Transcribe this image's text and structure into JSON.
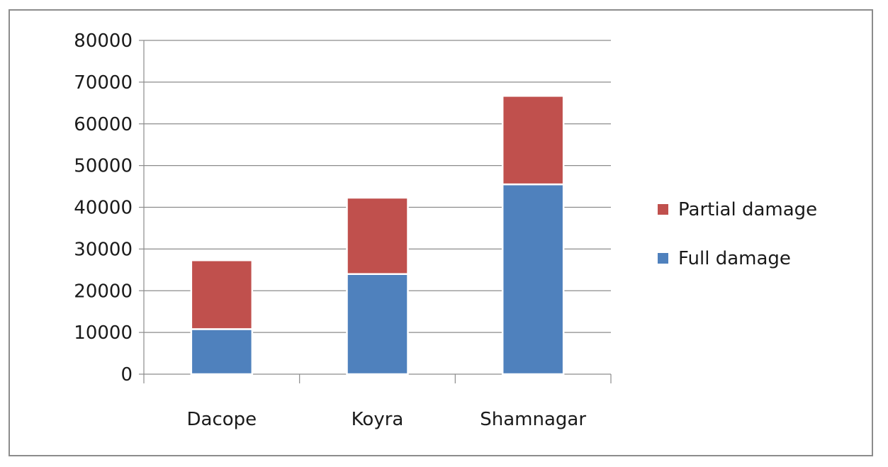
{
  "chart_data": {
    "type": "bar",
    "stacked": true,
    "title": "",
    "xlabel": "",
    "ylabel": "",
    "categories": [
      "Dacope",
      "Koyra",
      "Shamnagar"
    ],
    "series": [
      {
        "name": "Full damage",
        "values": [
          10800,
          24000,
          45500
        ],
        "color": "#4f81bd"
      },
      {
        "name": "Partial damage",
        "values": [
          16500,
          18300,
          21200
        ],
        "color": "#c0504d"
      }
    ],
    "ylim": [
      0,
      80000
    ],
    "y_ticks": [
      "0",
      "10000",
      "20000",
      "30000",
      "40000",
      "50000",
      "60000",
      "70000",
      "80000"
    ],
    "grid": true,
    "legend_position": "right",
    "legend_order": [
      "Partial damage",
      "Full damage"
    ]
  }
}
